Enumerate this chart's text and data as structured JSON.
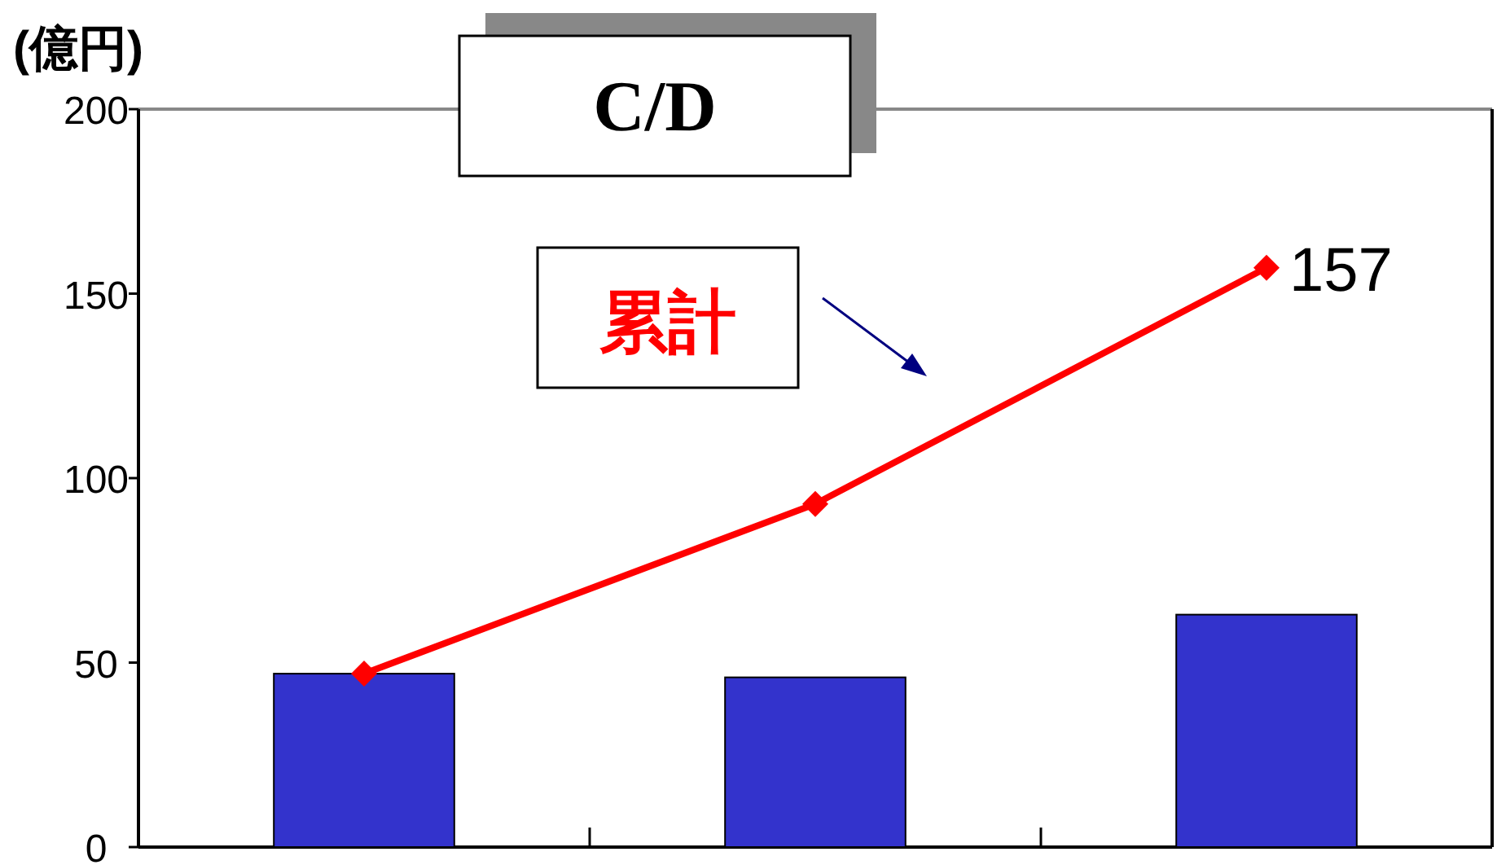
{
  "chart_data": {
    "type": "bar",
    "title": "C/D",
    "ylabel": "(億円)",
    "annotations": [
      "累計"
    ],
    "categories": [
      null,
      null,
      null
    ],
    "series": [
      {
        "color": "#3333cc",
        "values": [
          47,
          46,
          63
        ]
      },
      {
        "type": "line",
        "color": "#ff0000",
        "values": [
          47,
          93,
          157
        ],
        "value_labels": [
          null,
          null,
          "157"
        ]
      }
    ],
    "ylim": [
      0,
      200
    ],
    "yticks": [
      0,
      50,
      100,
      150,
      200
    ],
    "grid": false,
    "marker": "diamond"
  }
}
